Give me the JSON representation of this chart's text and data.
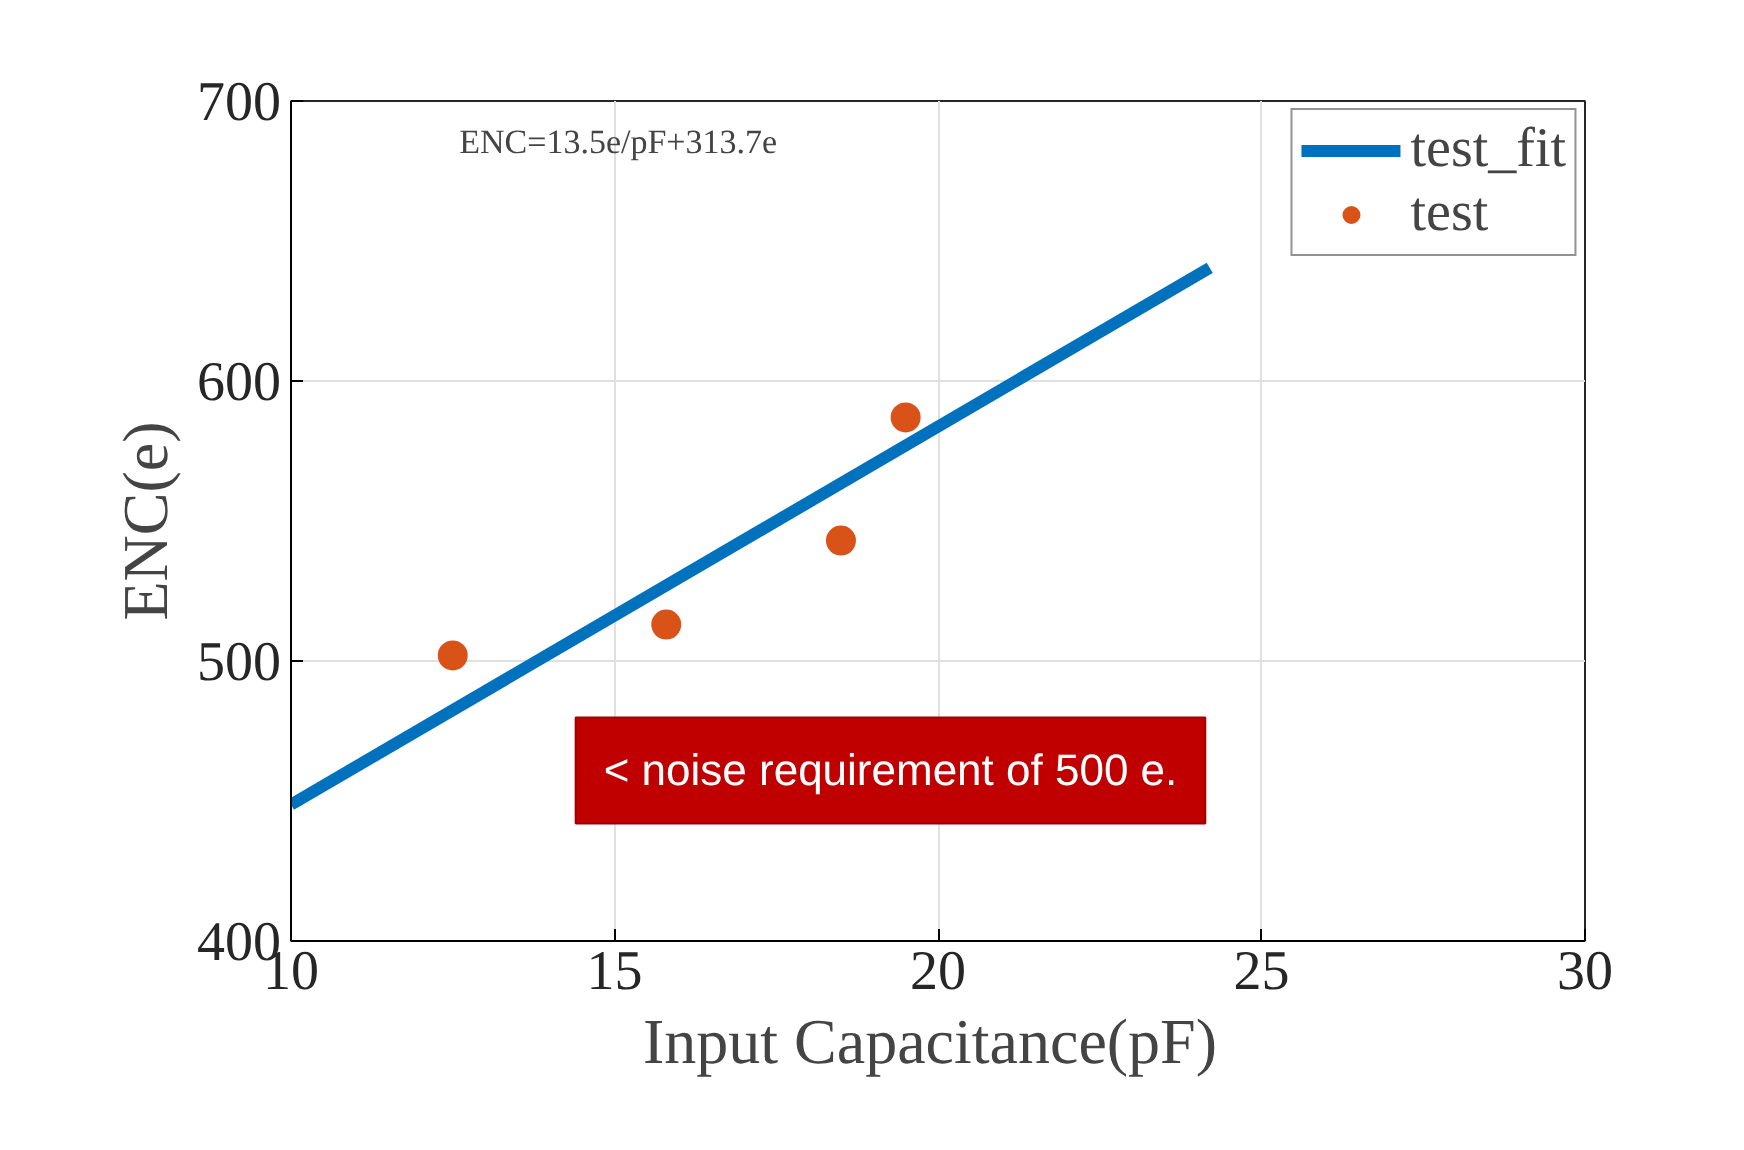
{
  "chart_data": {
    "type": "scatter",
    "xlabel": "Input  Capacitance(pF)",
    "ylabel": "ENC(e)",
    "xlim": [
      10,
      30
    ],
    "ylim": [
      400,
      700
    ],
    "xticks": [
      10,
      15,
      20,
      25,
      30
    ],
    "yticks": [
      400,
      500,
      600,
      700
    ],
    "grid": true,
    "legend": "top right",
    "series": [
      {
        "name": "test_fit",
        "type": "line",
        "color": "#0072bd",
        "x": [
          10,
          24.2
        ],
        "values": [
          448.7,
          640.4
        ],
        "line_style": "solid"
      },
      {
        "name": "test",
        "color": "#d95319",
        "x": [
          12.5,
          15.8,
          18.5,
          19.5
        ],
        "values": [
          502,
          513,
          543,
          587
        ],
        "marker": "circle"
      }
    ],
    "annotations": [
      "ENC=13.5e/pF+313.7e",
      "< noise requirement of 500 e."
    ]
  }
}
